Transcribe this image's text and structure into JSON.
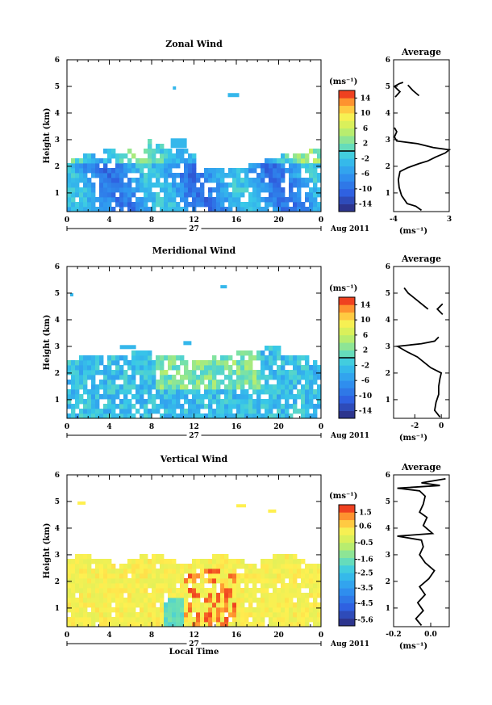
{
  "chart_data": [
    {
      "type": "heatmap",
      "title": "Zonal Wind",
      "ylabel": "Height (km)",
      "xlabel": "",
      "xlim": [
        0,
        24
      ],
      "ylim": [
        0.3,
        6
      ],
      "x_ticks": [
        "0",
        "4",
        "8",
        "12",
        "16",
        "20",
        "0"
      ],
      "y_ticks": [
        "1",
        "2",
        "3",
        "4",
        "5",
        "6"
      ],
      "date_label": "27",
      "date_suffix": "Aug 2011",
      "colorbar": {
        "title": "(ms⁻¹)",
        "tick_labels": [
          "14",
          "10",
          "6",
          "2",
          "-2",
          "-6",
          "-10",
          "-14"
        ],
        "range": [
          -16,
          16
        ]
      },
      "average_panel": {
        "title": "Average",
        "xlabel": "(ms⁻¹)",
        "x_ticks": [
          "-4",
          "3"
        ],
        "xlim": [
          -4,
          3
        ],
        "profile": [
          [
            -0.5,
            0.35
          ],
          [
            -1.2,
            0.5
          ],
          [
            -2.3,
            0.6
          ],
          [
            -3.0,
            0.9
          ],
          [
            -3.3,
            1.2
          ],
          [
            -3.4,
            1.5
          ],
          [
            -3.2,
            1.8
          ],
          [
            -2.2,
            1.95
          ],
          [
            -0.8,
            2.1
          ],
          [
            0.3,
            2.2
          ],
          [
            1.3,
            2.35
          ],
          [
            2.5,
            2.5
          ],
          [
            3.0,
            2.62
          ],
          [
            1.0,
            2.7
          ],
          [
            -1.0,
            2.85
          ],
          [
            -3.6,
            2.95
          ],
          [
            -3.9,
            3.1
          ],
          [
            -3.6,
            3.3
          ],
          [
            -3.9,
            3.45
          ]
        ],
        "profile_upper": [
          [
            -3.8,
            4.6
          ],
          [
            -3.2,
            4.8
          ],
          [
            -3.9,
            5.0
          ],
          [
            -3.3,
            5.1
          ],
          [
            -2.8,
            5.15
          ]
        ],
        "profile_seg": [
          [
            -0.8,
            4.65
          ],
          [
            -1.6,
            4.85
          ],
          [
            -2.2,
            5.05
          ]
        ]
      }
    },
    {
      "type": "heatmap",
      "title": "Meridional Wind",
      "ylabel": "Height (km)",
      "xlabel": "",
      "xlim": [
        0,
        24
      ],
      "ylim": [
        0.3,
        6
      ],
      "x_ticks": [
        "0",
        "4",
        "8",
        "12",
        "16",
        "20",
        "0"
      ],
      "y_ticks": [
        "1",
        "2",
        "3",
        "4",
        "5",
        "6"
      ],
      "date_label": "27",
      "date_suffix": "Aug 2011",
      "colorbar": {
        "title": "(ms⁻¹)",
        "tick_labels": [
          "14",
          "10",
          "6",
          "2",
          "-2",
          "-6",
          "-10",
          "-14"
        ],
        "range": [
          -16,
          16
        ]
      },
      "average_panel": {
        "title": "Average",
        "xlabel": "(ms⁻¹)",
        "x_ticks": [
          "-2",
          "0"
        ],
        "xlim": [
          -3.6,
          0.6
        ],
        "profile": [
          [
            -0.1,
            0.35
          ],
          [
            -0.5,
            0.6
          ],
          [
            -0.4,
            0.9
          ],
          [
            -0.2,
            1.2
          ],
          [
            -0.2,
            1.5
          ],
          [
            -0.1,
            1.8
          ],
          [
            0.0,
            2.0
          ],
          [
            -0.8,
            2.2
          ],
          [
            -1.3,
            2.4
          ],
          [
            -1.8,
            2.6
          ],
          [
            -2.6,
            2.8
          ],
          [
            -3.3,
            3.0
          ],
          [
            -1.5,
            3.1
          ],
          [
            -0.5,
            3.2
          ],
          [
            -0.2,
            3.35
          ]
        ],
        "profile_upper": [
          [
            -2.8,
            5.2
          ],
          [
            -2.5,
            5.0
          ],
          [
            -2.0,
            4.8
          ],
          [
            -1.5,
            4.6
          ],
          [
            -1.0,
            4.4
          ]
        ],
        "profile_seg": [
          [
            0.1,
            4.2
          ],
          [
            -0.3,
            4.4
          ],
          [
            0.1,
            4.6
          ]
        ]
      }
    },
    {
      "type": "heatmap",
      "title": "Vertical Wind",
      "ylabel": "Height (km)",
      "xlabel": "Local Time",
      "xlim": [
        0,
        24
      ],
      "ylim": [
        0.3,
        6
      ],
      "x_ticks": [
        "0",
        "4",
        "8",
        "12",
        "16",
        "20",
        "0"
      ],
      "y_ticks": [
        "1",
        "2",
        "3",
        "4",
        "5",
        "6"
      ],
      "date_label": "27",
      "date_suffix": "Aug 2011",
      "colorbar": {
        "title": "(ms⁻¹)",
        "tick_labels": [
          "1.5",
          "0.6",
          "-0.5",
          "-1.6",
          "-2.5",
          "-3.5",
          "-4.5",
          "-5.6"
        ],
        "range": [
          -6,
          2
        ]
      },
      "average_panel": {
        "title": "Average",
        "xlabel": "(ms⁻¹)",
        "x_ticks": [
          "-0.2",
          "0.0"
        ],
        "xlim": [
          -0.2,
          0.1
        ],
        "profile": [
          [
            -0.05,
            0.35
          ],
          [
            -0.08,
            0.6
          ],
          [
            -0.04,
            0.9
          ],
          [
            -0.07,
            1.2
          ],
          [
            -0.03,
            1.5
          ],
          [
            -0.06,
            1.8
          ],
          [
            -0.01,
            2.1
          ],
          [
            0.02,
            2.4
          ],
          [
            -0.03,
            2.7
          ],
          [
            -0.06,
            3.0
          ],
          [
            -0.04,
            3.3
          ],
          [
            -0.05,
            3.55
          ],
          [
            -0.18,
            3.7
          ],
          [
            0.01,
            3.8
          ],
          [
            -0.04,
            4.1
          ],
          [
            -0.02,
            4.4
          ],
          [
            -0.06,
            4.6
          ],
          [
            -0.04,
            4.9
          ],
          [
            -0.03,
            5.2
          ],
          [
            -0.06,
            5.4
          ],
          [
            -0.18,
            5.5
          ],
          [
            0.05,
            5.6
          ],
          [
            -0.05,
            5.7
          ],
          [
            0.08,
            5.85
          ]
        ],
        "profile_upper": [],
        "profile_seg": []
      }
    }
  ]
}
